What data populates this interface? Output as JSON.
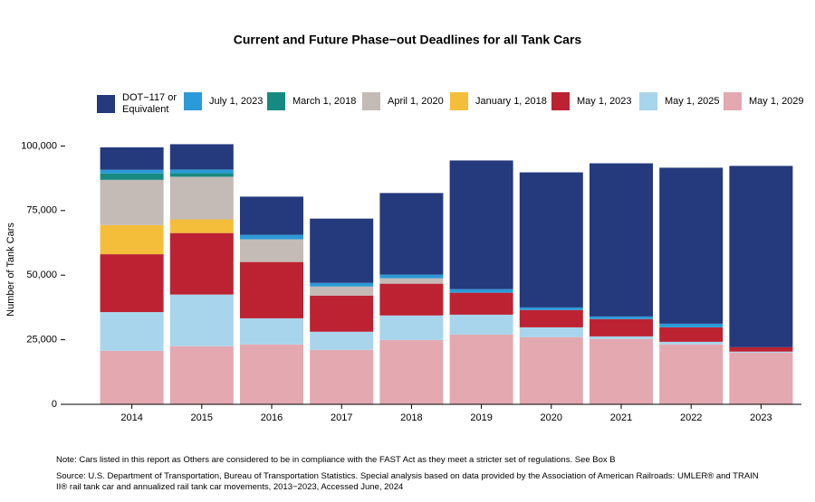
{
  "chart_data": {
    "type": "stacked-bar",
    "title": "Current and Future Phase−out Deadlines for all Tank Cars",
    "ylabel": "Number of Tank Cars",
    "categories": [
      "2014",
      "2015",
      "2016",
      "2017",
      "2018",
      "2019",
      "2020",
      "2021",
      "2022",
      "2023"
    ],
    "series": [
      {
        "name": "DOT−117 or Equivalent",
        "color": "#253a7c",
        "values": [
          8700,
          9800,
          14800,
          24900,
          31600,
          49800,
          52300,
          59300,
          60400,
          70200
        ]
      },
      {
        "name": "July 1, 2023",
        "color": "#2b9ad8",
        "values": [
          1400,
          1400,
          1700,
          1400,
          1400,
          1400,
          1000,
          1000,
          1400,
          0
        ]
      },
      {
        "name": "March 1, 2018",
        "color": "#168a80",
        "values": [
          2500,
          1400,
          0,
          0,
          0,
          0,
          0,
          0,
          0,
          0
        ]
      },
      {
        "name": "April 1, 2020",
        "color": "#c4bab6",
        "values": [
          17500,
          16500,
          8800,
          3500,
          2100,
          0,
          0,
          0,
          0,
          0
        ]
      },
      {
        "name": "January 1, 2018",
        "color": "#f4bd3a",
        "values": [
          11300,
          5300,
          0,
          0,
          0,
          0,
          0,
          0,
          0,
          0
        ]
      },
      {
        "name": "May 1, 2023",
        "color": "#bc2232",
        "values": [
          22400,
          23800,
          21800,
          14000,
          12300,
          8500,
          6700,
          6700,
          5600,
          1700
        ]
      },
      {
        "name": "May 1, 2025",
        "color": "#a8d5ec",
        "values": [
          15000,
          20000,
          10100,
          7000,
          9500,
          7700,
          3800,
          1000,
          1000,
          400
        ]
      },
      {
        "name": "May 1, 2029",
        "color": "#e4a8b0",
        "values": [
          20700,
          22500,
          23200,
          21100,
          24900,
          27000,
          26000,
          25300,
          23200,
          20000
        ]
      }
    ],
    "ylim": [
      0,
      104000
    ],
    "yticks": [
      0,
      {
        "value": 25000,
        "label": "25,000"
      },
      {
        "value": 50000,
        "label": "50,000"
      },
      {
        "value": 75000,
        "label": "75,000"
      },
      {
        "value": 100000,
        "label": "100,000"
      }
    ],
    "note": "Note: Cars listed in this report as Others are considered to be in compliance with the FAST Act as they meet a stricter set of regulations. See Box B",
    "source": "Source: U.S. Department of Transportation, Bureau of Transportation Statistics. Special analysis based on data provided by the Association of American Railroads: UMLER® and TRAIN II® rail tank car and annualized rail tank car movements, 2013−2023, Accessed June, 2024"
  }
}
